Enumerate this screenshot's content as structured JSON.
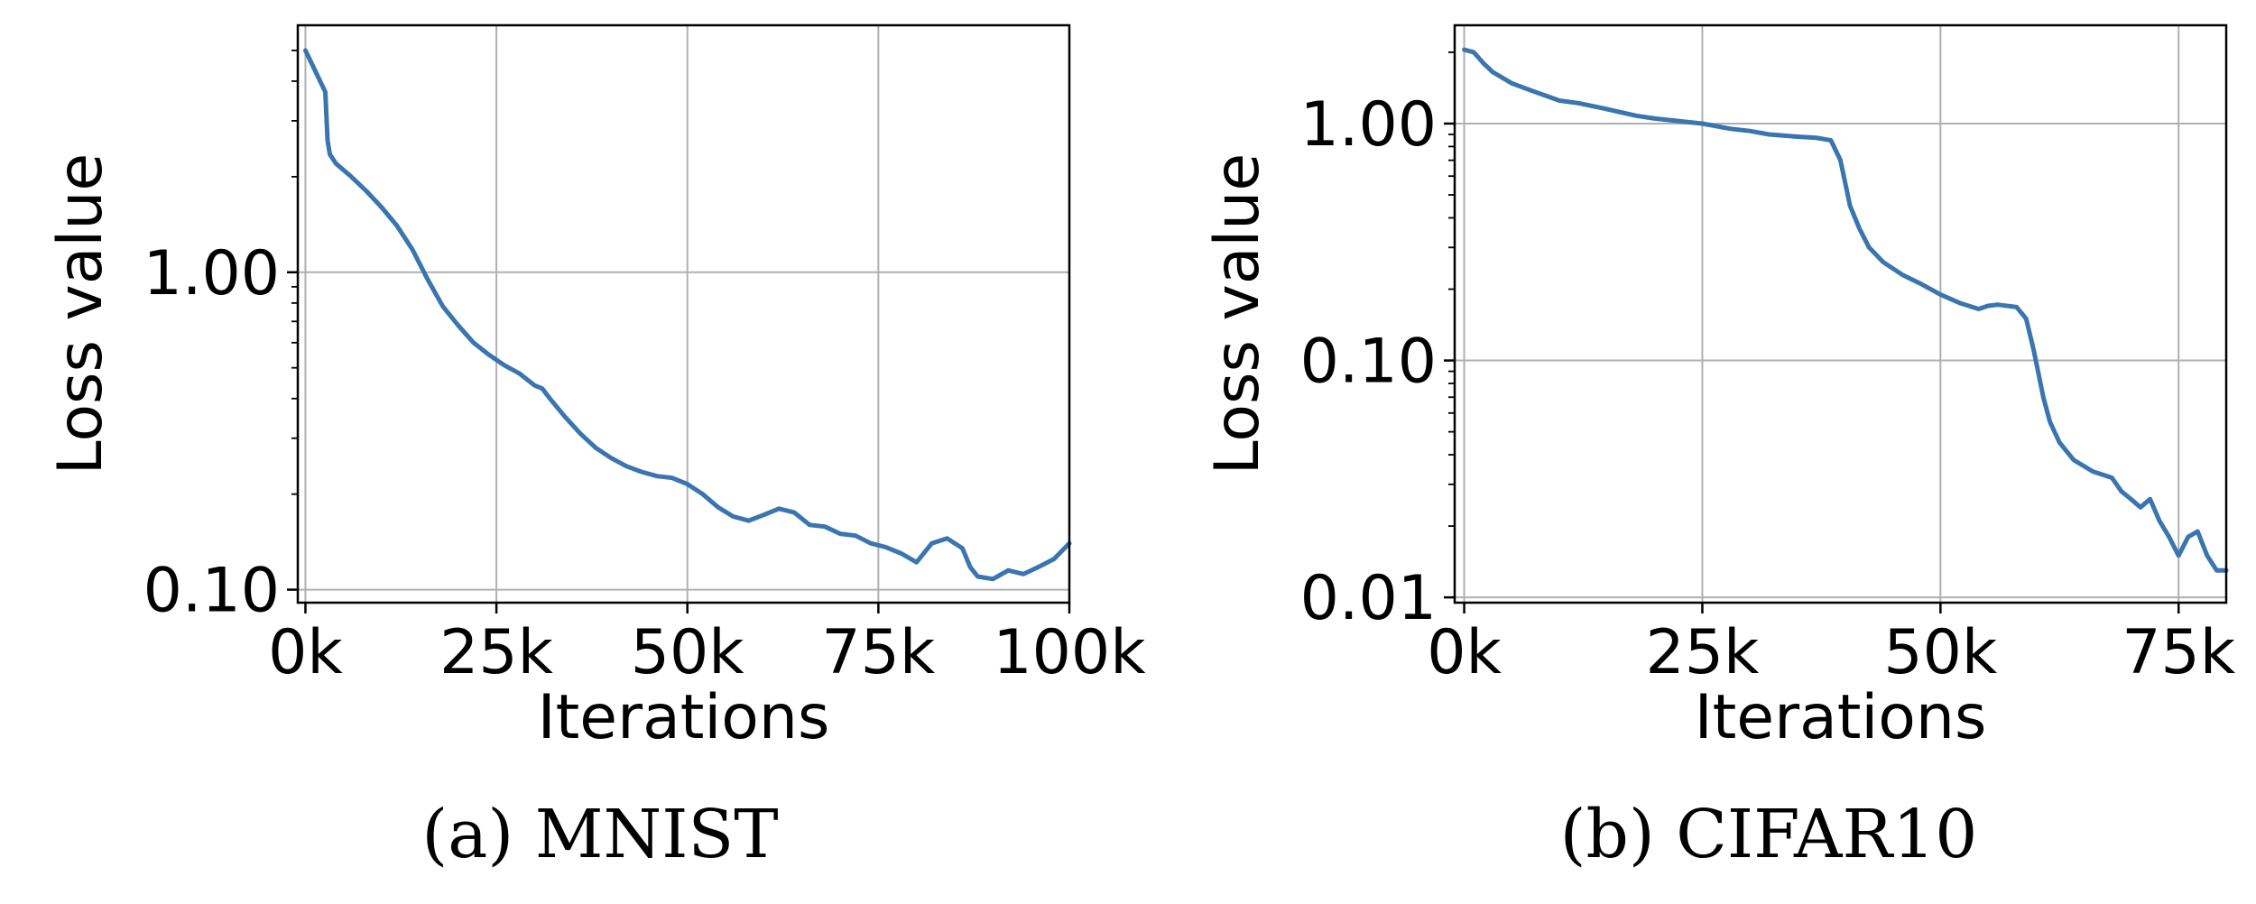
{
  "chart_data": [
    {
      "type": "line",
      "caption": "(a) MNIST",
      "xlabel": "Iterations",
      "ylabel": "Loss value",
      "xscale": "linear",
      "yscale": "log",
      "xlim": [
        -1000,
        100000
      ],
      "ylim": [
        0.091,
        6.0
      ],
      "grid": true,
      "xticks": [
        0,
        25000,
        50000,
        75000,
        100000
      ],
      "xtick_labels": [
        "0k",
        "25k",
        "50k",
        "75k",
        "100k"
      ],
      "yticks": [
        0.1,
        1.0
      ],
      "ytick_labels": [
        "0.10",
        "1.00"
      ],
      "series": [
        {
          "color": "#3a75b0",
          "x": [
            0,
            1500,
            2600,
            2900,
            3200,
            4000,
            6000,
            8000,
            10000,
            12000,
            14000,
            16000,
            17000,
            18000,
            20000,
            22000,
            24000,
            26000,
            28000,
            30000,
            31000,
            32000,
            34000,
            36000,
            38000,
            40000,
            42000,
            44000,
            46000,
            48000,
            50000,
            52000,
            54000,
            56000,
            58000,
            60000,
            62000,
            64000,
            66000,
            68000,
            70000,
            72000,
            74000,
            76000,
            78000,
            80000,
            82000,
            84000,
            86000,
            87000,
            88000,
            90000,
            92000,
            94000,
            96000,
            98000,
            100000
          ],
          "y": [
            5.0,
            4.2,
            3.7,
            2.6,
            2.35,
            2.2,
            2.0,
            1.8,
            1.6,
            1.4,
            1.18,
            0.95,
            0.86,
            0.78,
            0.68,
            0.6,
            0.55,
            0.51,
            0.48,
            0.44,
            0.43,
            0.4,
            0.35,
            0.31,
            0.28,
            0.26,
            0.245,
            0.235,
            0.228,
            0.225,
            0.215,
            0.2,
            0.182,
            0.17,
            0.165,
            0.172,
            0.18,
            0.175,
            0.16,
            0.158,
            0.15,
            0.148,
            0.14,
            0.136,
            0.13,
            0.122,
            0.14,
            0.145,
            0.135,
            0.118,
            0.11,
            0.108,
            0.115,
            0.112,
            0.118,
            0.125,
            0.14
          ]
        }
      ]
    },
    {
      "type": "line",
      "caption": "(b) CIFAR10",
      "xlabel": "Iterations",
      "ylabel": "Loss value",
      "xscale": "linear",
      "yscale": "log",
      "xlim": [
        -1000,
        80000
      ],
      "ylim": [
        0.0095,
        2.6
      ],
      "grid": true,
      "xticks": [
        0,
        25000,
        50000,
        75000
      ],
      "xtick_labels": [
        "0k",
        "25k",
        "50k",
        "75k"
      ],
      "yticks": [
        0.01,
        0.1,
        1.0
      ],
      "ytick_labels": [
        "0.01",
        "0.10",
        "1.00"
      ],
      "series": [
        {
          "color": "#3a75b0",
          "x": [
            0,
            1000,
            2000,
            3000,
            5000,
            7000,
            10000,
            12000,
            15000,
            18000,
            20000,
            22000,
            25000,
            28000,
            30000,
            32000,
            35000,
            37000,
            38500,
            39500,
            40500,
            41500,
            42500,
            44000,
            46000,
            48000,
            50000,
            52000,
            54000,
            55000,
            56000,
            58000,
            59000,
            59800,
            60800,
            61500,
            62500,
            64000,
            66000,
            68000,
            69000,
            70000,
            71000,
            72000,
            73000,
            74000,
            75000,
            76000,
            77000,
            78000,
            79000,
            80000
          ],
          "y": [
            2.05,
            2.0,
            1.8,
            1.65,
            1.48,
            1.38,
            1.25,
            1.22,
            1.15,
            1.08,
            1.05,
            1.03,
            1.0,
            0.95,
            0.93,
            0.9,
            0.88,
            0.87,
            0.85,
            0.7,
            0.45,
            0.36,
            0.3,
            0.26,
            0.23,
            0.21,
            0.19,
            0.175,
            0.165,
            0.17,
            0.172,
            0.168,
            0.15,
            0.11,
            0.07,
            0.055,
            0.045,
            0.038,
            0.034,
            0.032,
            0.028,
            0.026,
            0.024,
            0.026,
            0.021,
            0.018,
            0.015,
            0.018,
            0.019,
            0.015,
            0.013,
            0.013
          ]
        }
      ]
    }
  ]
}
